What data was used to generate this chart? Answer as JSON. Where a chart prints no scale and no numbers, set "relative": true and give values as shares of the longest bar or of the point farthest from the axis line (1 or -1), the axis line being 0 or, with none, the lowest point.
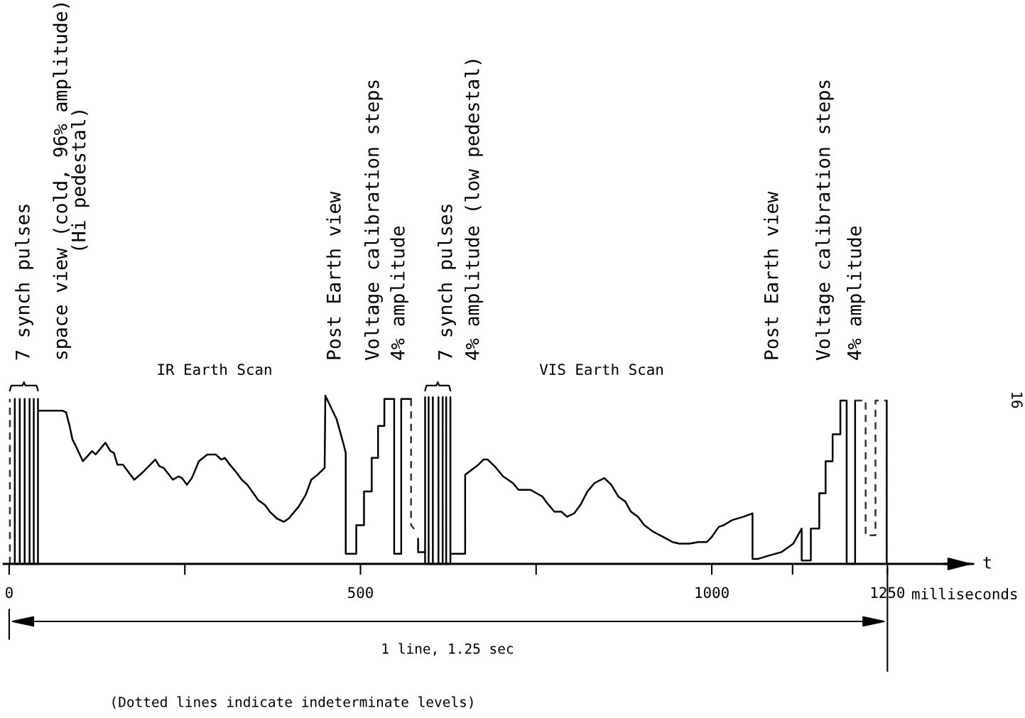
{
  "chart_data": {
    "type": "line",
    "relative": true,
    "xlabel": "t",
    "xlim": [
      -8,
      1372
    ],
    "xticks": [
      0,
      {
        "value": 250,
        "label": null
      },
      500,
      {
        "value": 750,
        "label": null
      },
      1000,
      {
        "value": 1115,
        "label": null
      },
      1250
    ],
    "tick_labels": "x",
    "series": [
      {
        "color": "#000000",
        "line_style": "solid",
        "x": [
          8,
          8,
          8,
          15,
          15,
          15,
          22,
          22,
          22,
          29,
          29,
          29,
          35,
          35,
          35,
          41,
          41,
          41,
          76,
          81,
          86,
          90,
          96,
          105,
          118,
          123,
          137,
          144,
          149,
          154,
          162,
          169,
          178,
          189,
          208,
          214,
          220,
          233,
          241,
          246,
          253,
          260,
          270,
          282,
          294,
          302,
          307,
          314,
          324,
          331,
          339,
          351,
          354,
          364,
          371,
          381,
          391,
          398,
          412,
          422,
          430,
          439,
          449,
          450,
          466,
          476,
          479,
          479,
          494,
          494,
          505,
          505,
          516,
          516,
          525,
          525,
          534,
          534,
          548,
          548,
          558,
          558,
          572,
          577,
          582,
          582,
          592,
          592,
          592,
          597,
          597,
          597,
          603,
          603,
          603,
          611,
          611,
          611,
          617,
          617,
          617,
          622,
          622,
          622,
          628,
          628,
          628,
          649,
          649,
          668,
          675,
          681,
          691,
          703,
          717,
          725,
          742,
          759,
          766,
          776,
          786,
          794,
          804,
          813,
          823,
          833,
          847,
          857,
          867,
          877,
          885,
          895,
          904,
          917,
          931,
          944,
          954,
          968,
          981,
          993,
          1000,
          1010,
          1017,
          1029,
          1045,
          1058,
          1058,
          1066,
          1082,
          1099,
          1116,
          1128,
          1128,
          1141,
          1141,
          1153,
          1153,
          1162,
          1162,
          1172,
          1172,
          1183,
          1183,
          1192,
          1192,
          1204,
          1204,
          1226,
          1249,
          1249
        ],
        "values": [
          0,
          0.98,
          0,
          0,
          0.98,
          0,
          0,
          0.98,
          0,
          0,
          0.98,
          0,
          0,
          0.98,
          0,
          0,
          0.98,
          0.91,
          0.91,
          0.9,
          0.82,
          0.74,
          0.69,
          0.61,
          0.67,
          0.65,
          0.72,
          0.67,
          0.66,
          0.59,
          0.59,
          0.55,
          0.5,
          0.54,
          0.62,
          0.58,
          0.57,
          0.5,
          0.52,
          0.51,
          0.47,
          0.51,
          0.61,
          0.65,
          0.65,
          0.62,
          0.63,
          0.59,
          0.54,
          0.5,
          0.47,
          0.4,
          0.38,
          0.35,
          0.31,
          0.27,
          0.25,
          0.27,
          0.34,
          0.41,
          0.5,
          0.53,
          0.57,
          1.0,
          0.86,
          0.71,
          0.66,
          0.06,
          0.06,
          0.23,
          0.23,
          0.43,
          0.43,
          0.63,
          0.63,
          0.82,
          0.82,
          0.98,
          0.98,
          0.06,
          0.06,
          0.98,
          0.98,
          null,
          0.15,
          0.07,
          0.07,
          0.99,
          0,
          0,
          0.99,
          0,
          0,
          0.99,
          0,
          0,
          0.99,
          0,
          0,
          0.99,
          0,
          0,
          0.99,
          0,
          0,
          0.99,
          0.06,
          0.06,
          0.53,
          0.59,
          0.62,
          0.62,
          0.58,
          0.52,
          0.48,
          0.44,
          0.44,
          0.4,
          0.36,
          0.31,
          0.31,
          0.28,
          0.3,
          0.35,
          0.43,
          0.48,
          0.51,
          0.47,
          0.4,
          0.37,
          0.31,
          0.28,
          0.23,
          0.19,
          0.16,
          0.13,
          0.12,
          0.12,
          0.13,
          0.13,
          0.16,
          0.22,
          0.23,
          0.26,
          0.28,
          0.3,
          0.03,
          0.03,
          0.05,
          0.07,
          0.12,
          0.21,
          0.02,
          0.02,
          0.21,
          0.21,
          0.42,
          0.42,
          0.61,
          0.61,
          0.77,
          0.77,
          0.97,
          0.97,
          0,
          0,
          0.97,
          null,
          0.97,
          0
        ]
      },
      {
        "color": "#333333",
        "line_style": "dashed",
        "x": [
          1,
          1,
          300,
          572,
          572,
          580,
          900,
          1204,
          1219,
          1219,
          1233,
          1233,
          1249
        ],
        "values": [
          0,
          0.98,
          null,
          0.98,
          0.23,
          0.19,
          null,
          0.97,
          0.97,
          0.17,
          0.17,
          0.97,
          0.97
        ]
      }
    ],
    "annotations": [
      "7 synch pulses",
      "space view (cold, 96% amplitude)\n(Hi pedestal)",
      "IR Earth Scan",
      "Post Earth view",
      "Voltage calibration steps",
      "4% amplitude",
      "7 synch pulses",
      "4% amplitude (low pedestal)",
      "VIS Earth Scan",
      "Post Earth view",
      "Voltage calibration steps",
      "4% amplitude",
      "milliseconds",
      "1 line, 1.25 sec",
      "(Dotted lines indicate indeterminate levels)",
      "16"
    ]
  }
}
